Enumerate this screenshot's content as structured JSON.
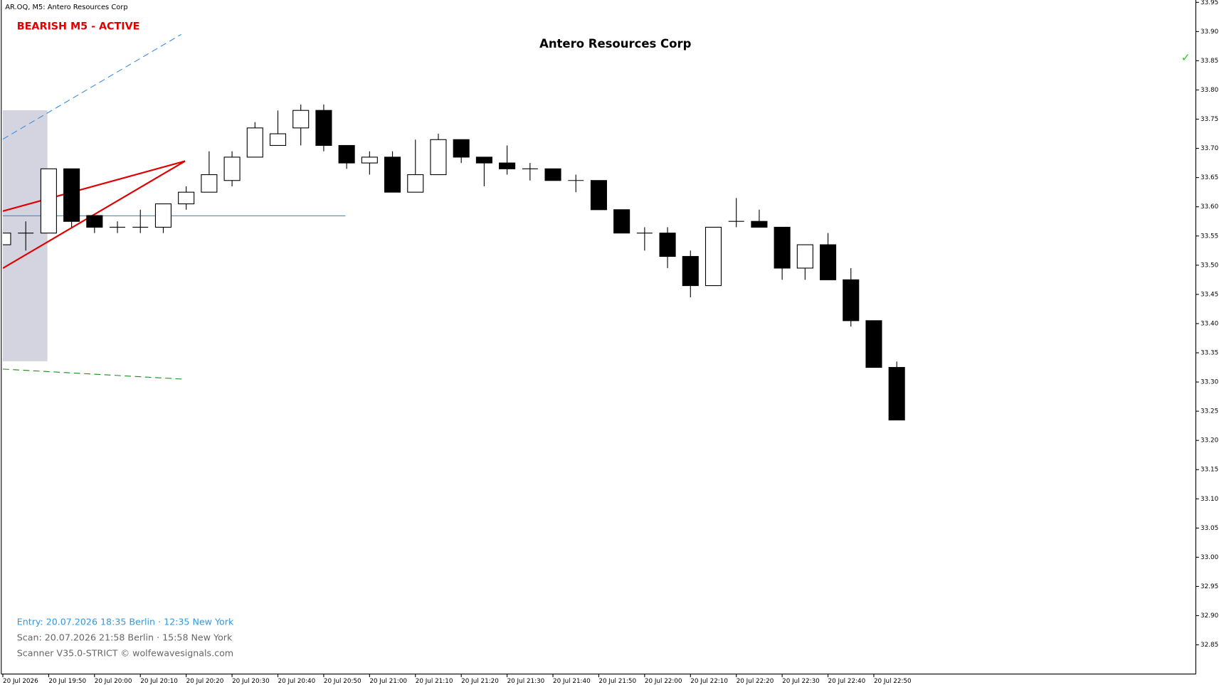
{
  "chart_data": {
    "type": "candlestick",
    "header": "AR.OQ, M5:  Antero Resources Corp",
    "signal": "BEARISH M5 - ACTIVE",
    "title": "Antero Resources Corp",
    "marker": "✓",
    "footer": [
      "Entry: 20.07.2026  18:35 Berlin · 12:35 New York",
      "Scan:  20.07.2026  21:58 Berlin · 15:58 New York",
      "Scanner V35.0-STRICT  © wolfewavesignals.com"
    ],
    "categories": [
      "20 Jul 2026",
      null,
      "20 Jul 19:50",
      null,
      "20 Jul 20:00",
      null,
      "20 Jul 20:10",
      null,
      "20 Jul 20:20",
      null,
      "20 Jul 20:30",
      null,
      "20 Jul 20:40",
      null,
      "20 Jul 20:50",
      null,
      "20 Jul 21:00",
      null,
      "20 Jul 21:10",
      null,
      "20 Jul 21:20",
      null,
      "20 Jul 21:30",
      null,
      "20 Jul 21:40",
      null,
      "20 Jul 21:50",
      null,
      "20 Jul 22:00",
      null,
      "20 Jul 22:10",
      null,
      "20 Jul 22:20",
      null,
      "20 Jul 22:30",
      null,
      "20 Jul 22:40",
      null,
      "20 Jul 22:50",
      null
    ],
    "open": [
      33.535,
      33.555,
      33.555,
      33.665,
      33.585,
      33.565,
      33.565,
      33.565,
      33.605,
      33.625,
      33.645,
      33.685,
      33.705,
      33.735,
      33.765,
      33.705,
      33.675,
      33.685,
      33.625,
      33.655,
      33.715,
      33.685,
      33.675,
      33.665,
      33.665,
      33.645,
      33.645,
      33.595,
      33.555,
      33.555,
      33.515,
      33.465,
      33.575,
      33.575,
      33.565,
      33.495,
      33.535,
      33.475,
      33.405,
      33.325
    ],
    "high": [
      33.555,
      33.575,
      33.665,
      33.665,
      33.585,
      33.575,
      33.595,
      33.605,
      33.635,
      33.695,
      33.695,
      33.745,
      33.765,
      33.775,
      33.775,
      33.705,
      33.695,
      33.695,
      33.715,
      33.725,
      33.715,
      33.685,
      33.705,
      33.675,
      33.665,
      33.655,
      33.645,
      33.595,
      33.565,
      33.565,
      33.525,
      33.565,
      33.615,
      33.595,
      33.565,
      33.535,
      33.555,
      33.495,
      33.405,
      33.335
    ],
    "low": [
      33.535,
      33.525,
      33.555,
      33.565,
      33.555,
      33.555,
      33.555,
      33.555,
      33.595,
      33.625,
      33.635,
      33.685,
      33.705,
      33.705,
      33.695,
      33.665,
      33.655,
      33.625,
      33.625,
      33.655,
      33.675,
      33.635,
      33.655,
      33.645,
      33.645,
      33.625,
      33.595,
      33.555,
      33.525,
      33.495,
      33.445,
      33.465,
      33.565,
      33.565,
      33.475,
      33.475,
      33.475,
      33.395,
      33.325,
      33.235
    ],
    "close": [
      33.555,
      33.555,
      33.665,
      33.575,
      33.565,
      33.565,
      33.565,
      33.605,
      33.625,
      33.655,
      33.685,
      33.735,
      33.725,
      33.765,
      33.705,
      33.675,
      33.685,
      33.625,
      33.655,
      33.715,
      33.685,
      33.675,
      33.665,
      33.665,
      33.645,
      33.645,
      33.595,
      33.555,
      33.555,
      33.515,
      33.465,
      33.565,
      33.575,
      33.565,
      33.495,
      33.535,
      33.475,
      33.405,
      33.325,
      33.235
    ],
    "up_color": "#ffffff",
    "down_color": "#000000",
    "ylim": [
      32.8,
      33.95
    ],
    "yticks": [
      {
        "value": 32.85,
        "label": "32.85"
      },
      {
        "value": 32.9,
        "label": "32.90"
      },
      {
        "value": 32.95,
        "label": "32.95"
      },
      {
        "value": 33.0,
        "label": "33.00"
      },
      {
        "value": 33.05,
        "label": "33.05"
      },
      {
        "value": 33.1,
        "label": "33.10"
      },
      {
        "value": 33.15,
        "label": "33.15"
      },
      {
        "value": 33.2,
        "label": "33.20"
      },
      {
        "value": 33.25,
        "label": "33.25"
      },
      {
        "value": 33.3,
        "label": "33.30"
      },
      {
        "value": 33.35,
        "label": "33.35"
      },
      {
        "value": 33.4,
        "label": "33.40"
      },
      {
        "value": 33.45,
        "label": "33.45"
      },
      {
        "value": 33.5,
        "label": "33.50"
      },
      {
        "value": 33.55,
        "label": "33.55"
      },
      {
        "value": 33.6,
        "label": "33.60"
      },
      {
        "value": 33.65,
        "label": "33.65"
      },
      {
        "value": 33.7,
        "label": "33.70"
      },
      {
        "value": 33.75,
        "label": "33.75"
      },
      {
        "value": 33.8,
        "label": "33.80"
      },
      {
        "value": 33.85,
        "label": "33.85"
      },
      {
        "value": 33.9,
        "label": "33.90"
      },
      {
        "value": 33.95,
        "label": "33.95"
      }
    ]
  }
}
